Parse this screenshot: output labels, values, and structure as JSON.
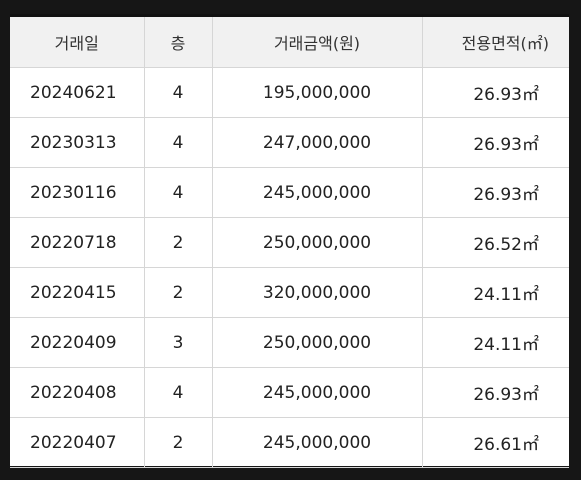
{
  "table": {
    "headers": [
      "거래일",
      "층",
      "거래금액(원)",
      "전용면적(㎡)"
    ],
    "rows": [
      {
        "date": "20240621",
        "floor": "4",
        "price": "195,000,000",
        "area": "26.93㎡"
      },
      {
        "date": "20230313",
        "floor": "4",
        "price": "247,000,000",
        "area": "26.93㎡"
      },
      {
        "date": "20230116",
        "floor": "4",
        "price": "245,000,000",
        "area": "26.93㎡"
      },
      {
        "date": "20220718",
        "floor": "2",
        "price": "250,000,000",
        "area": "26.52㎡"
      },
      {
        "date": "20220415",
        "floor": "2",
        "price": "320,000,000",
        "area": "24.11㎡"
      },
      {
        "date": "20220409",
        "floor": "3",
        "price": "250,000,000",
        "area": "24.11㎡"
      },
      {
        "date": "20220408",
        "floor": "4",
        "price": "245,000,000",
        "area": "26.93㎡"
      },
      {
        "date": "20220407",
        "floor": "2",
        "price": "245,000,000",
        "area": "26.61㎡"
      }
    ]
  }
}
